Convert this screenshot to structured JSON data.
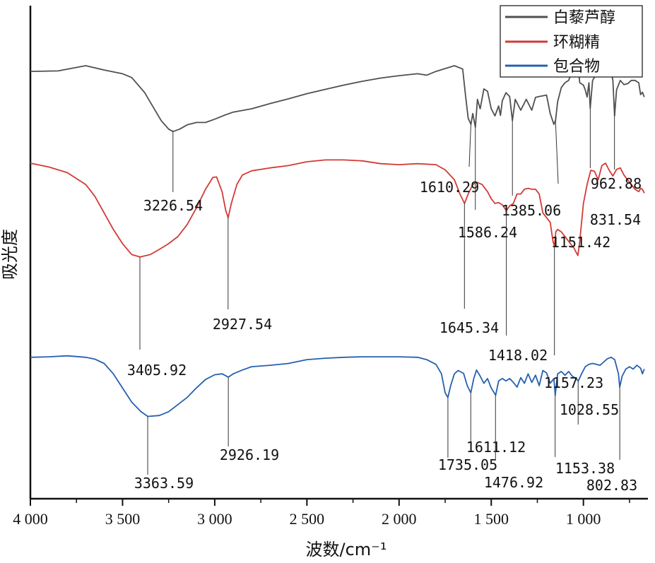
{
  "chart_data": {
    "type": "line",
    "xlabel": "波数/cm⁻¹",
    "ylabel": "吸光度",
    "xlim": [
      4000,
      650
    ],
    "x_reversed": true,
    "grid": false,
    "legend_position": "top-right",
    "x_ticks": [
      {
        "value": 4000,
        "label": "4 000"
      },
      {
        "value": 3500,
        "label": "3 500"
      },
      {
        "value": 3000,
        "label": "3 000"
      },
      {
        "value": 2500,
        "label": "2 500"
      },
      {
        "value": 2000,
        "label": "2 000"
      },
      {
        "value": 1500,
        "label": "1 500"
      },
      {
        "value": 1000,
        "label": "1 000"
      }
    ],
    "series": [
      {
        "name": "白藜芦醇",
        "color": "#505050",
        "points": [
          [
            4000,
            0.879
          ],
          [
            3850,
            0.88
          ],
          [
            3700,
            0.891
          ],
          [
            3600,
            0.882
          ],
          [
            3500,
            0.874
          ],
          [
            3450,
            0.866
          ],
          [
            3380,
            0.834
          ],
          [
            3330,
            0.801
          ],
          [
            3290,
            0.775
          ],
          [
            3250,
            0.757
          ],
          [
            3226,
            0.752
          ],
          [
            3190,
            0.757
          ],
          [
            3150,
            0.766
          ],
          [
            3100,
            0.771
          ],
          [
            3050,
            0.771
          ],
          [
            3000,
            0.778
          ],
          [
            2950,
            0.786
          ],
          [
            2900,
            0.793
          ],
          [
            2800,
            0.8
          ],
          [
            2700,
            0.811
          ],
          [
            2600,
            0.821
          ],
          [
            2500,
            0.832
          ],
          [
            2400,
            0.841
          ],
          [
            2300,
            0.85
          ],
          [
            2200,
            0.858
          ],
          [
            2100,
            0.865
          ],
          [
            2000,
            0.87
          ],
          [
            1900,
            0.874
          ],
          [
            1850,
            0.871
          ],
          [
            1800,
            0.879
          ],
          [
            1700,
            0.891
          ],
          [
            1655,
            0.884
          ],
          [
            1640,
            0.83
          ],
          [
            1625,
            0.78
          ],
          [
            1610,
            0.767
          ],
          [
            1600,
            0.79
          ],
          [
            1586,
            0.761
          ],
          [
            1575,
            0.82
          ],
          [
            1560,
            0.8
          ],
          [
            1540,
            0.842
          ],
          [
            1520,
            0.837
          ],
          [
            1500,
            0.8
          ],
          [
            1480,
            0.785
          ],
          [
            1460,
            0.806
          ],
          [
            1450,
            0.786
          ],
          [
            1440,
            0.817
          ],
          [
            1420,
            0.834
          ],
          [
            1400,
            0.826
          ],
          [
            1385,
            0.775
          ],
          [
            1370,
            0.82
          ],
          [
            1340,
            0.797
          ],
          [
            1310,
            0.82
          ],
          [
            1280,
            0.797
          ],
          [
            1260,
            0.824
          ],
          [
            1240,
            0.826
          ],
          [
            1200,
            0.829
          ],
          [
            1180,
            0.79
          ],
          [
            1160,
            0.767
          ],
          [
            1151,
            0.776
          ],
          [
            1140,
            0.815
          ],
          [
            1120,
            0.845
          ],
          [
            1100,
            0.855
          ],
          [
            1080,
            0.86
          ],
          [
            1060,
            0.88
          ],
          [
            1040,
            0.895
          ],
          [
            1030,
            0.895
          ],
          [
            1020,
            0.855
          ],
          [
            1000,
            0.85
          ],
          [
            990,
            0.84
          ],
          [
            980,
            0.825
          ],
          [
            970,
            0.855
          ],
          [
            963,
            0.801
          ],
          [
            950,
            0.86
          ],
          [
            920,
            0.88
          ],
          [
            880,
            0.892
          ],
          [
            850,
            0.88
          ],
          [
            840,
            0.86
          ],
          [
            831,
            0.785
          ],
          [
            820,
            0.84
          ],
          [
            800,
            0.86
          ],
          [
            780,
            0.851
          ],
          [
            760,
            0.853
          ],
          [
            740,
            0.86
          ],
          [
            720,
            0.86
          ],
          [
            700,
            0.855
          ],
          [
            690,
            0.83
          ],
          [
            680,
            0.835
          ],
          [
            670,
            0.825
          ]
        ]
      },
      {
        "name": "环糊精",
        "color": "#d33a35",
        "points": [
          [
            4000,
            0.685
          ],
          [
            3900,
            0.677
          ],
          [
            3800,
            0.665
          ],
          [
            3700,
            0.64
          ],
          [
            3650,
            0.615
          ],
          [
            3600,
            0.58
          ],
          [
            3550,
            0.545
          ],
          [
            3500,
            0.515
          ],
          [
            3450,
            0.492
          ],
          [
            3405,
            0.487
          ],
          [
            3350,
            0.492
          ],
          [
            3300,
            0.503
          ],
          [
            3250,
            0.515
          ],
          [
            3200,
            0.53
          ],
          [
            3150,
            0.555
          ],
          [
            3100,
            0.59
          ],
          [
            3050,
            0.63
          ],
          [
            3010,
            0.655
          ],
          [
            2990,
            0.656
          ],
          [
            2960,
            0.625
          ],
          [
            2940,
            0.585
          ],
          [
            2927,
            0.57
          ],
          [
            2910,
            0.6
          ],
          [
            2880,
            0.64
          ],
          [
            2850,
            0.66
          ],
          [
            2800,
            0.669
          ],
          [
            2700,
            0.675
          ],
          [
            2600,
            0.68
          ],
          [
            2500,
            0.688
          ],
          [
            2400,
            0.692
          ],
          [
            2300,
            0.692
          ],
          [
            2200,
            0.69
          ],
          [
            2100,
            0.684
          ],
          [
            2000,
            0.682
          ],
          [
            1900,
            0.684
          ],
          [
            1800,
            0.682
          ],
          [
            1750,
            0.671
          ],
          [
            1700,
            0.65
          ],
          [
            1670,
            0.62
          ],
          [
            1645,
            0.6
          ],
          [
            1625,
            0.62
          ],
          [
            1600,
            0.64
          ],
          [
            1580,
            0.645
          ],
          [
            1550,
            0.64
          ],
          [
            1520,
            0.625
          ],
          [
            1500,
            0.61
          ],
          [
            1480,
            0.6
          ],
          [
            1460,
            0.602
          ],
          [
            1440,
            0.597
          ],
          [
            1418,
            0.585
          ],
          [
            1400,
            0.595
          ],
          [
            1380,
            0.6
          ],
          [
            1360,
            0.62
          ],
          [
            1340,
            0.62
          ],
          [
            1320,
            0.63
          ],
          [
            1300,
            0.632
          ],
          [
            1280,
            0.63
          ],
          [
            1260,
            0.63
          ],
          [
            1240,
            0.62
          ],
          [
            1220,
            0.58
          ],
          [
            1200,
            0.57
          ],
          [
            1180,
            0.56
          ],
          [
            1165,
            0.52
          ],
          [
            1157,
            0.51
          ],
          [
            1150,
            0.54
          ],
          [
            1140,
            0.545
          ],
          [
            1120,
            0.54
          ],
          [
            1100,
            0.53
          ],
          [
            1080,
            0.52
          ],
          [
            1060,
            0.51
          ],
          [
            1050,
            0.505
          ],
          [
            1040,
            0.497
          ],
          [
            1030,
            0.49
          ],
          [
            1020,
            0.52
          ],
          [
            1000,
            0.6
          ],
          [
            980,
            0.64
          ],
          [
            960,
            0.67
          ],
          [
            940,
            0.668
          ],
          [
            920,
            0.65
          ],
          [
            900,
            0.68
          ],
          [
            880,
            0.685
          ],
          [
            860,
            0.67
          ],
          [
            840,
            0.658
          ],
          [
            820,
            0.672
          ],
          [
            800,
            0.675
          ],
          [
            780,
            0.66
          ],
          [
            760,
            0.65
          ],
          [
            740,
            0.64
          ],
          [
            720,
            0.63
          ],
          [
            700,
            0.625
          ],
          [
            690,
            0.632
          ],
          [
            680,
            0.63
          ],
          [
            670,
            0.622
          ]
        ]
      },
      {
        "name": "包合物",
        "color": "#2660b0",
        "points": [
          [
            4000,
            0.275
          ],
          [
            3900,
            0.276
          ],
          [
            3800,
            0.278
          ],
          [
            3700,
            0.275
          ],
          [
            3650,
            0.271
          ],
          [
            3600,
            0.262
          ],
          [
            3550,
            0.24
          ],
          [
            3500,
            0.21
          ],
          [
            3450,
            0.18
          ],
          [
            3400,
            0.16
          ],
          [
            3363,
            0.15
          ],
          [
            3300,
            0.152
          ],
          [
            3250,
            0.16
          ],
          [
            3200,
            0.175
          ],
          [
            3150,
            0.19
          ],
          [
            3100,
            0.21
          ],
          [
            3050,
            0.228
          ],
          [
            3000,
            0.238
          ],
          [
            2960,
            0.24
          ],
          [
            2926,
            0.233
          ],
          [
            2900,
            0.24
          ],
          [
            2850,
            0.248
          ],
          [
            2800,
            0.255
          ],
          [
            2700,
            0.258
          ],
          [
            2600,
            0.262
          ],
          [
            2500,
            0.27
          ],
          [
            2400,
            0.273
          ],
          [
            2300,
            0.275
          ],
          [
            2200,
            0.276
          ],
          [
            2100,
            0.276
          ],
          [
            2000,
            0.276
          ],
          [
            1900,
            0.275
          ],
          [
            1850,
            0.27
          ],
          [
            1800,
            0.26
          ],
          [
            1770,
            0.24
          ],
          [
            1750,
            0.2
          ],
          [
            1735,
            0.19
          ],
          [
            1720,
            0.215
          ],
          [
            1700,
            0.24
          ],
          [
            1680,
            0.247
          ],
          [
            1650,
            0.241
          ],
          [
            1630,
            0.215
          ],
          [
            1611,
            0.2
          ],
          [
            1595,
            0.23
          ],
          [
            1580,
            0.248
          ],
          [
            1560,
            0.235
          ],
          [
            1540,
            0.22
          ],
          [
            1520,
            0.23
          ],
          [
            1500,
            0.21
          ],
          [
            1476,
            0.195
          ],
          [
            1460,
            0.225
          ],
          [
            1440,
            0.23
          ],
          [
            1420,
            0.225
          ],
          [
            1400,
            0.23
          ],
          [
            1380,
            0.222
          ],
          [
            1360,
            0.212
          ],
          [
            1340,
            0.232
          ],
          [
            1320,
            0.22
          ],
          [
            1300,
            0.24
          ],
          [
            1280,
            0.222
          ],
          [
            1260,
            0.237
          ],
          [
            1240,
            0.215
          ],
          [
            1220,
            0.247
          ],
          [
            1200,
            0.242
          ],
          [
            1180,
            0.22
          ],
          [
            1160,
            0.23
          ],
          [
            1153,
            0.195
          ],
          [
            1140,
            0.24
          ],
          [
            1120,
            0.245
          ],
          [
            1100,
            0.237
          ],
          [
            1080,
            0.245
          ],
          [
            1060,
            0.235
          ],
          [
            1040,
            0.23
          ],
          [
            1028,
            0.225
          ],
          [
            1010,
            0.24
          ],
          [
            990,
            0.255
          ],
          [
            970,
            0.26
          ],
          [
            950,
            0.262
          ],
          [
            930,
            0.26
          ],
          [
            910,
            0.258
          ],
          [
            890,
            0.265
          ],
          [
            870,
            0.272
          ],
          [
            850,
            0.275
          ],
          [
            830,
            0.27
          ],
          [
            820,
            0.255
          ],
          [
            810,
            0.24
          ],
          [
            803,
            0.212
          ],
          [
            790,
            0.235
          ],
          [
            770,
            0.25
          ],
          [
            750,
            0.255
          ],
          [
            730,
            0.25
          ],
          [
            710,
            0.258
          ],
          [
            690,
            0.252
          ],
          [
            680,
            0.24
          ],
          [
            670,
            0.25
          ]
        ]
      }
    ],
    "annotations": [
      {
        "label": "3226.54",
        "x": 3226.54,
        "series": 0
      },
      {
        "label": "1610.29",
        "x": 1610.29,
        "series": 0
      },
      {
        "label": "1586.24",
        "x": 1586.24,
        "series": 0
      },
      {
        "label": "1385.06",
        "x": 1385.06,
        "series": 0
      },
      {
        "label": "1151.42",
        "x": 1151.42,
        "series": 0
      },
      {
        "label": "962.88",
        "x": 962.88,
        "series": 0
      },
      {
        "label": "831.54",
        "x": 831.54,
        "series": 0
      },
      {
        "label": "3405.92",
        "x": 3405.92,
        "series": 1
      },
      {
        "label": "2927.54",
        "x": 2927.54,
        "series": 1
      },
      {
        "label": "1645.34",
        "x": 1645.34,
        "series": 1
      },
      {
        "label": "1418.02",
        "x": 1418.02,
        "series": 1
      },
      {
        "label": "1157.23",
        "x": 1157.23,
        "series": 1
      },
      {
        "label": "3363.59",
        "x": 3363.59,
        "series": 2
      },
      {
        "label": "2926.19",
        "x": 2926.19,
        "series": 2
      },
      {
        "label": "1735.05",
        "x": 1735.05,
        "series": 2
      },
      {
        "label": "1611.12",
        "x": 1611.12,
        "series": 2
      },
      {
        "label": "1476.92",
        "x": 1476.92,
        "series": 2
      },
      {
        "label": "1153.38",
        "x": 1153.38,
        "series": 2
      },
      {
        "label": "1028.55",
        "x": 1028.55,
        "series": 2
      },
      {
        "label": "802.83",
        "x": 802.83,
        "series": 2
      }
    ]
  }
}
